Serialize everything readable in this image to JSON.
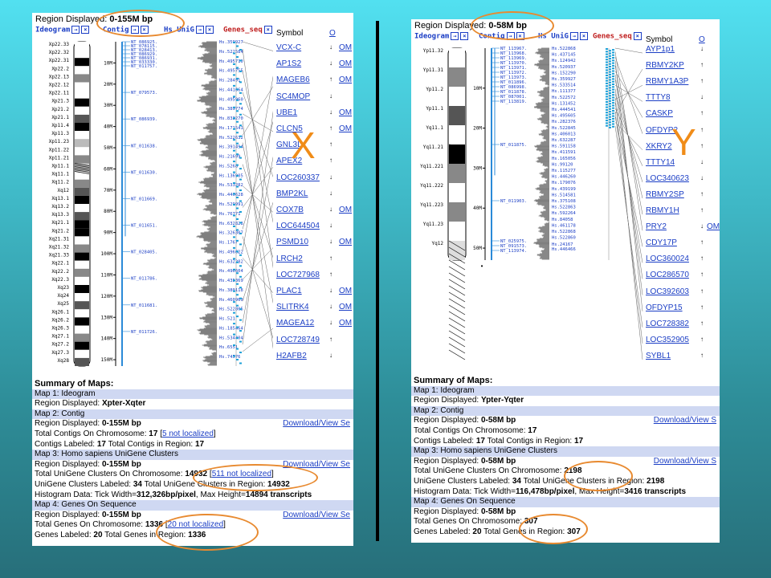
{
  "colors": {
    "link": "#1b3ec5",
    "highlight": "#e88a30",
    "contig": "#2a8ad8",
    "genes": "#1aa0d8",
    "header_row": "#cfd8f2"
  },
  "x": {
    "letter": "X",
    "region_label": "Region Displayed:",
    "region_value": "0-155M bp",
    "headers": {
      "ideogram": "Ideogram",
      "contig": "Contig",
      "unigene": "Hs UniG",
      "genes": "Genes_seq",
      "symbol": "Symbol",
      "omim": "O"
    },
    "ideogram_bands": [
      "Xp22.33",
      "Xp22.32",
      "Xp22.31",
      "Xp22.2",
      "Xp22.13",
      "Xp22.12",
      "Xp22.11",
      "Xp21.3",
      "Xp21.2",
      "Xp21.1",
      "Xp11.4",
      "Xp11.3",
      "Xp11.23",
      "Xp11.22",
      "Xp11.21",
      "Xp11.1",
      "Xq11.1",
      "Xq11.2",
      "Xq12",
      "Xq13.1",
      "Xq13.2",
      "Xq13.3",
      "Xq21.1",
      "Xq21.2",
      "Xq21.31",
      "Xq21.32",
      "Xq21.33",
      "Xq22.1",
      "Xq22.2",
      "Xq22.3",
      "Xq23",
      "Xq24",
      "Xq25",
      "Xq26.1",
      "Xq26.2",
      "Xq26.3",
      "Xq27.1",
      "Xq27.2",
      "Xq27.3",
      "Xq28"
    ],
    "ticks": [
      "10M",
      "20M",
      "30M",
      "40M",
      "50M",
      "60M",
      "70M",
      "80M",
      "90M",
      "100M",
      "110M",
      "120M",
      "130M",
      "140M",
      "150M"
    ],
    "contigs": [
      "NT_086925.",
      "NT_078115.",
      "NT_028413.",
      "NT_086929.",
      "NT_086931.",
      "NT_033330.",
      "NT_011757.",
      "NT_079573.",
      "NT_086939.",
      "NT_011638.",
      "NT_011630.",
      "NT_011669.",
      "NT_011651.",
      "NT_028405.",
      "NT_011786.",
      "NT_011681.",
      "NT_011726."
    ],
    "unigenes": [
      "Hs.359927",
      "Hs.522584",
      "Hs.495710",
      "Hs.495755",
      "Hs.28491",
      "Hs.441664",
      "Hs.495960",
      "Hs.389774",
      "Hs.833270",
      "Hs.171541",
      "Hs.522632",
      "Hs.391494",
      "Hs.21699",
      "Hs.5268",
      "Hs.136905",
      "Hs.533282",
      "Hs.446628",
      "Hs.529991",
      "Hs.76771",
      "Hs.632828",
      "Hs.326307",
      "Hs.1767",
      "Hs.496622",
      "Hs.632282",
      "Hs.496604",
      "Hs.435369",
      "Hs.380118",
      "Hs.460960",
      "Hs.522805",
      "Hs.521",
      "Hs.185464",
      "Hs.534404",
      "Hs.6551",
      "Hs.74576"
    ],
    "genes": [
      {
        "sym": "VCX-C",
        "dir": "↓",
        "omim": "OM"
      },
      {
        "sym": "AP1S2",
        "dir": "↓",
        "omim": "OM"
      },
      {
        "sym": "MAGEB6",
        "dir": "↑",
        "omim": "OM"
      },
      {
        "sym": "SC4MOP",
        "dir": "↓",
        "omim": ""
      },
      {
        "sym": "UBE1",
        "dir": "↓",
        "omim": "OM"
      },
      {
        "sym": "CLCN5",
        "dir": "↑",
        "omim": "OM"
      },
      {
        "sym": "GNL3L",
        "dir": "↑",
        "omim": ""
      },
      {
        "sym": "APEX2",
        "dir": "↑",
        "omim": ""
      },
      {
        "sym": "LOC260337",
        "dir": "↓",
        "omim": ""
      },
      {
        "sym": "BMP2KL",
        "dir": "↓",
        "omim": ""
      },
      {
        "sym": "COX7B",
        "dir": "↓",
        "omim": "OM"
      },
      {
        "sym": "LOC644504",
        "dir": "↓",
        "omim": ""
      },
      {
        "sym": "PSMD10",
        "dir": "↓",
        "omim": "OM"
      },
      {
        "sym": "LRCH2",
        "dir": "↑",
        "omim": ""
      },
      {
        "sym": "LOC727968",
        "dir": "↑",
        "omim": ""
      },
      {
        "sym": "PLAC1",
        "dir": "↓",
        "omim": "OM"
      },
      {
        "sym": "SLITRK4",
        "dir": "↓",
        "omim": "OM"
      },
      {
        "sym": "MAGEA12",
        "dir": "↓",
        "omim": "OM"
      },
      {
        "sym": "LOC728749",
        "dir": "↑",
        "omim": ""
      },
      {
        "sym": "H2AFB2",
        "dir": "↓",
        "omim": ""
      }
    ],
    "summary": {
      "title": "Summary of Maps:",
      "map1": "Map 1: Ideogram",
      "map1_region_label": "Region Displayed:",
      "map1_region": "Xpter-Xqter",
      "map2": "Map 2: Contig",
      "map2_region_label": "Region Displayed:",
      "map2_region": "0-155M bp",
      "download": "Download/View Se",
      "total_contigs_label": "Total Contigs On Chromosome:",
      "total_contigs": "17",
      "contigs_notloc": "5 not localized",
      "contigs_labeled_label": "Contigs Labeled:",
      "contigs_labeled": "17",
      "contigs_region_label": "Total Contigs in Region:",
      "contigs_region": "17",
      "map3": "Map 3: Homo sapiens UniGene Clusters",
      "map3_region_label": "Region Displayed:",
      "map3_region": "0-155M bp",
      "total_ug_label": "Total UniGene Clusters On Chromosome:",
      "total_ug": "14932",
      "ug_notloc": "511 not localized",
      "ug_labeled_label": "UniGene Clusters Labeled:",
      "ug_labeled": "34",
      "ug_region_label": "Total UniGene Clusters in Region:",
      "ug_region": "14932",
      "hist_label": "Histogram Data: Tick Width=",
      "hist_width": "312,326bp/pixel",
      "hist_max_label": ", Max Height=",
      "hist_max": "14894 transcripts",
      "map4": "Map 4: Genes On Sequence",
      "map4_region_label": "Region Displayed:",
      "map4_region": "0-155M bp",
      "total_genes_label": "Total Genes On Chromosome:",
      "total_genes": "1336",
      "genes_notloc": "20 not localized",
      "genes_labeled_label": "Genes Labeled:",
      "genes_labeled": "20",
      "genes_region_label": "Total Genes in Region:",
      "genes_region": "1336"
    }
  },
  "y": {
    "letter": "Y",
    "region_label": "Region Displayed:",
    "region_value": "0-58M bp",
    "headers": {
      "ideogram": "Ideogram",
      "contig": "Contig",
      "unigene": "Hs UniG",
      "genes": "Genes_seq",
      "symbol": "Symbol",
      "omim": "O"
    },
    "ideogram_bands": [
      "Yp11.32",
      "Yp11.31",
      "Yp11.2",
      "Yp11.1",
      "Yq11.1",
      "Yq11.21",
      "Yq11.221",
      "Yq11.222",
      "Yq11.223",
      "Yq11.23",
      "Yq12"
    ],
    "ticks": [
      "10M",
      "20M",
      "30M",
      "40M",
      "50M"
    ],
    "contigs": [
      "NT_113967.",
      "NT_113968.",
      "NT_113969.",
      "NT_113970.",
      "NT_113971.",
      "NT_113972.",
      "NT_113973.",
      "NT_011896.",
      "NT_086998.",
      "NT_011878.",
      "NT_087001.",
      "NT_113819.",
      "NT_011875.",
      "NT_011903.",
      "NT_025975.",
      "NT_091573.",
      "NT_113974."
    ],
    "unigenes": [
      "Hs.522868",
      "Hs.437145",
      "Hs.124942",
      "Hs.520937",
      "Hs.152290",
      "Hs.359927",
      "Hs.533514",
      "Hs.111377",
      "Hs.522572",
      "Hs.131452",
      "Hs.444541",
      "Hs.495605",
      "Hs.282376",
      "Hs.522845",
      "Hs.406013",
      "Hs.632287",
      "Hs.591158",
      "Hs.411591",
      "Hs.165056",
      "Hs.99120",
      "Hs.115277",
      "Hs.446260",
      "Hs.179076",
      "Hs.439199",
      "Hs.514581",
      "Hs.375108",
      "Hs.522863",
      "Hs.592264",
      "Hs.84058",
      "Hs.461178",
      "Hs.522868",
      "Hs.522860",
      "Hs.24167",
      "Hs.446466"
    ],
    "genes": [
      {
        "sym": "AYP1p1",
        "dir": "↓",
        "omim": ""
      },
      {
        "sym": "RBMY2KP",
        "dir": "↑",
        "omim": ""
      },
      {
        "sym": "RBMY1A3P",
        "dir": "↑",
        "omim": ""
      },
      {
        "sym": "TTTY8",
        "dir": "↓",
        "omim": ""
      },
      {
        "sym": "CASKP",
        "dir": "↑",
        "omim": ""
      },
      {
        "sym": "OFDYP2",
        "dir": "↑",
        "omim": ""
      },
      {
        "sym": "XKRY2",
        "dir": "↑",
        "omim": ""
      },
      {
        "sym": "TTTY14",
        "dir": "↓",
        "omim": ""
      },
      {
        "sym": "LOC340623",
        "dir": "↓",
        "omim": ""
      },
      {
        "sym": "RBMY2SP",
        "dir": "↑",
        "omim": ""
      },
      {
        "sym": "RBMY1H",
        "dir": "↑",
        "omim": ""
      },
      {
        "sym": "PRY2",
        "dir": "↓",
        "omim": "OM"
      },
      {
        "sym": "CDY17P",
        "dir": "↑",
        "omim": ""
      },
      {
        "sym": "LOC360024",
        "dir": "↑",
        "omim": ""
      },
      {
        "sym": "LOC286570",
        "dir": "↑",
        "omim": ""
      },
      {
        "sym": "LOC392603",
        "dir": "↑",
        "omim": ""
      },
      {
        "sym": "OFDYP15",
        "dir": "↑",
        "omim": ""
      },
      {
        "sym": "LOC728382",
        "dir": "↑",
        "omim": ""
      },
      {
        "sym": "LOC352905",
        "dir": "↑",
        "omim": ""
      },
      {
        "sym": "SYBL1",
        "dir": "↑",
        "omim": ""
      }
    ],
    "summary": {
      "title": "Summary of Maps:",
      "map1": "Map 1: Ideogram",
      "map1_region_label": "Region Displayed:",
      "map1_region": "Ypter-Yqter",
      "map2": "Map 2: Contig",
      "map2_region_label": "Region Displayed:",
      "map2_region": "0-58M bp",
      "download": "Download/View S",
      "total_contigs_label": "Total Contigs On Chromosome:",
      "total_contigs": "17",
      "contigs_labeled_label": "Contigs Labeled:",
      "contigs_labeled": "17",
      "contigs_region_label": "Total Contigs in Region:",
      "contigs_region": "17",
      "map3": "Map 3: Homo sapiens UniGene Clusters",
      "map3_region_label": "Region Displayed:",
      "map3_region": "0-58M bp",
      "total_ug_label": "Total UniGene Clusters On Chromosome:",
      "total_ug": "2198",
      "ug_labeled_label": "UniGene Clusters Labeled:",
      "ug_labeled": "34",
      "ug_region_label": "Total UniGene Clusters in Region:",
      "ug_region": "2198",
      "hist_label": "Histogram Data: Tick Width=",
      "hist_width": "116,478bp/pixel",
      "hist_max_label": ", Max Height=",
      "hist_max": "3416 transcripts",
      "map4": "Map 4: Genes On Sequence",
      "map4_region_label": "Region Displayed:",
      "map4_region": "0-58M bp",
      "total_genes_label": "Total Genes On Chromosome:",
      "total_genes": "307",
      "genes_labeled_label": "Genes Labeled:",
      "genes_labeled": "20",
      "genes_region_label": "Total Genes in Region:",
      "genes_region": "307"
    }
  }
}
